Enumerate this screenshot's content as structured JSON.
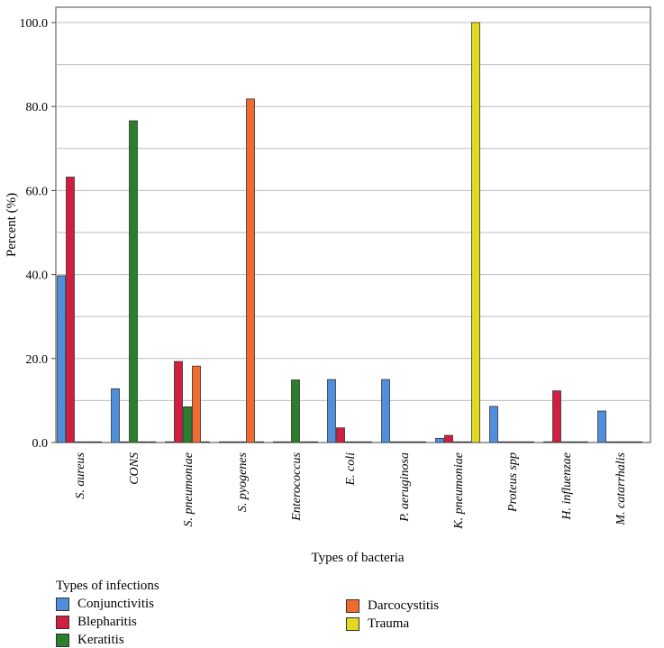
{
  "chart_data": {
    "type": "bar",
    "title": "",
    "xlabel": "Types of bacteria",
    "ylabel": "Percent (%)",
    "ylim": [
      0,
      100
    ],
    "yticks": [
      "0.0",
      "20.0",
      "40.0",
      "60.0",
      "80.0",
      "100.0"
    ],
    "grid": true,
    "categories": [
      "S. aureus",
      "CONS",
      "S. pneumoniae",
      "S. pyogenes",
      "Enterococcus",
      "E. coli",
      "P. aeruginosa",
      "K. pneumoniae",
      "Proteus spp",
      "H. influenzae",
      "M. catarrhalis"
    ],
    "series": [
      {
        "name": "Conjunctivitis",
        "color": "#4f8fdc",
        "values": [
          39.7,
          12.8,
          0,
          0,
          0,
          15.0,
          15.0,
          1.0,
          8.6,
          0,
          7.5
        ]
      },
      {
        "name": "Blepharitis",
        "color": "#d11d3f",
        "values": [
          63.2,
          0,
          19.3,
          0,
          0,
          3.5,
          0,
          1.7,
          0,
          12.3,
          0
        ]
      },
      {
        "name": "Keratitis",
        "color": "#2b7e2b",
        "values": [
          0,
          76.6,
          8.5,
          0,
          14.9,
          0,
          0,
          0,
          0,
          0,
          0
        ]
      },
      {
        "name": "Darcocystitis",
        "color": "#ef6c2e",
        "values": [
          0,
          0,
          18.2,
          81.8,
          0,
          0,
          0,
          0,
          0,
          0,
          0
        ]
      },
      {
        "name": "Trauma",
        "color": "#e2d81e",
        "values": [
          0,
          0,
          0,
          0,
          0,
          0,
          0,
          100.0,
          0,
          0,
          0
        ]
      }
    ],
    "legend": {
      "title": "Types of infections",
      "position": "bottom-left"
    }
  }
}
